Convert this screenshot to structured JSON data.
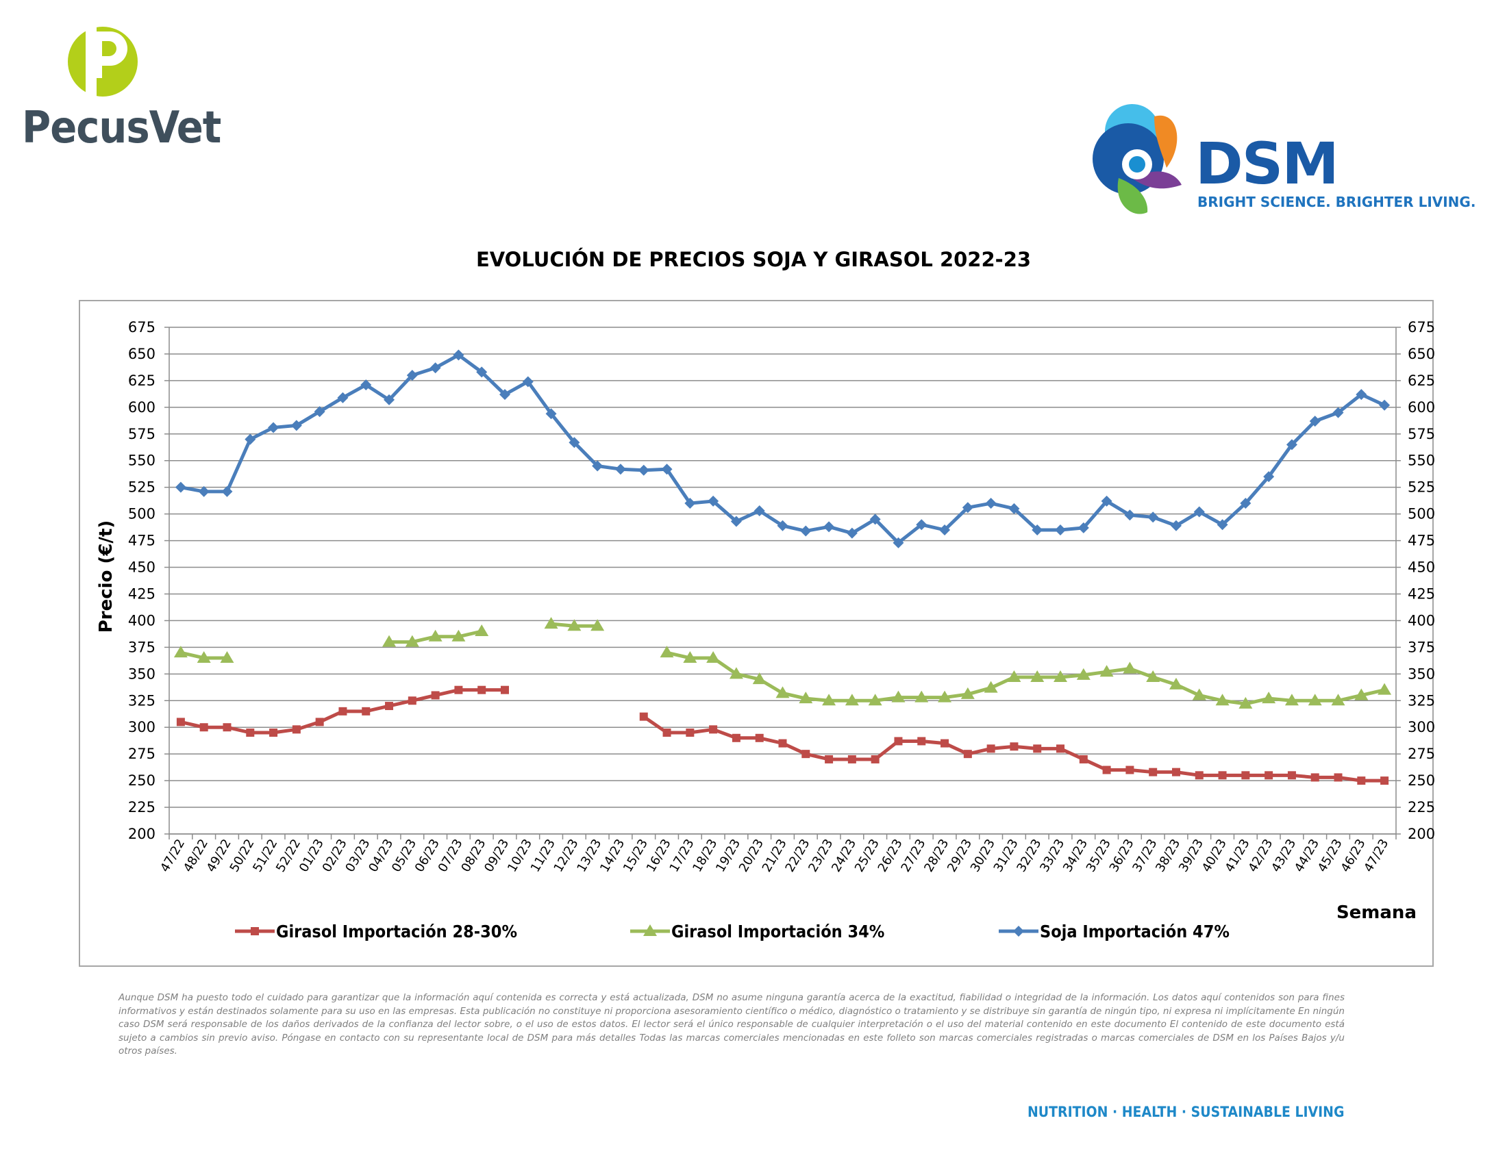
{
  "logos": {
    "pecusvet": {
      "text": "PecusVet",
      "colors": {
        "lime": "#b3cf1a",
        "text": "#3f4f5c"
      }
    },
    "dsm": {
      "text": "DSM",
      "tagline": "BRIGHT SCIENCE. BRIGHTER LIVING.",
      "colors": {
        "text": "#1a5aa6"
      }
    }
  },
  "footer": {
    "disclaimer": "Aunque DSM ha puesto todo el cuidado para garantizar que la información aquí contenida es correcta y está actualizada, DSM no asume ninguna garantía acerca de la exactitud, fiabilidad o integridad de la información. Los datos aquí contenidos son para fines informativos y están destinados solamente para su uso en las empresas. Esta publicación no constituye ni proporciona asesoramiento científico o médico, diagnóstico o tratamiento y se distribuye sin garantía de ningún tipo, ni expresa ni implícitamente En ningún caso DSM será responsable de los daños derivados de la confianza del lector sobre, o el uso de estos datos. El lector será el único responsable de cualquier interpretación o el uso del material contenido en este documento El contenido de este documento está sujeto a cambios sin previo aviso. Póngase en contacto con su representante local de DSM para más detalles Todas las marcas comerciales mencionadas en este folleto son marcas comerciales registradas o marcas comerciales de DSM en los Países Bajos y/u otros países.",
    "tagline": "NUTRITION · HEALTH · SUSTAINABLE LIVING"
  },
  "chart_data": {
    "type": "line",
    "title": "EVOLUCIÓN DE PRECIOS SOJA Y GIRASOL 2022-23",
    "xlabel": "Semana",
    "ylabel": "Precio (€/t)",
    "ylim": [
      200,
      675
    ],
    "ytick_step": 25,
    "grid": true,
    "legend_position": "bottom",
    "categories": [
      "47/22",
      "48/22",
      "49/22",
      "50/22",
      "51/22",
      "52/22",
      "01/23",
      "02/23",
      "03/23",
      "04/23",
      "05/23",
      "06/23",
      "07/23",
      "08/23",
      "09/23",
      "10/23",
      "11/23",
      "12/23",
      "13/23",
      "14/23",
      "15/23",
      "16/23",
      "17/23",
      "18/23",
      "19/23",
      "20/23",
      "21/23",
      "22/23",
      "23/23",
      "24/23",
      "25/23",
      "26/23",
      "27/23",
      "28/23",
      "29/23",
      "30/23",
      "31/23",
      "32/23",
      "33/23",
      "34/23",
      "35/23",
      "36/23",
      "37/23",
      "38/23",
      "39/23",
      "40/23",
      "41/23",
      "42/23",
      "43/23",
      "44/23",
      "45/23",
      "46/23",
      "47/23"
    ],
    "series": [
      {
        "name": "Girasol Importación 28-30%",
        "color": "#be4b48",
        "marker": "square",
        "values": [
          305,
          300,
          300,
          295,
          295,
          298,
          305,
          315,
          315,
          320,
          325,
          330,
          335,
          335,
          335,
          null,
          null,
          null,
          null,
          null,
          310,
          295,
          295,
          298,
          290,
          290,
          285,
          275,
          270,
          270,
          270,
          287,
          287,
          285,
          275,
          280,
          282,
          280,
          280,
          270,
          260,
          260,
          258,
          258,
          255,
          255,
          255,
          255,
          255,
          253,
          253,
          250,
          250
        ]
      },
      {
        "name": "Girasol Importación 34%",
        "color": "#9bbb59",
        "marker": "triangle",
        "values": [
          370,
          365,
          365,
          null,
          null,
          null,
          null,
          null,
          null,
          380,
          380,
          385,
          385,
          390,
          null,
          null,
          397,
          395,
          395,
          null,
          null,
          370,
          365,
          365,
          350,
          345,
          332,
          327,
          325,
          325,
          325,
          328,
          328,
          328,
          331,
          337,
          347,
          347,
          347,
          349,
          352,
          355,
          347,
          340,
          330,
          325,
          322,
          327,
          325,
          325,
          325,
          330,
          335
        ]
      },
      {
        "name": "Soja Importación 47%",
        "color": "#4a7ebb",
        "marker": "diamond",
        "values": [
          525,
          521,
          521,
          570,
          581,
          583,
          596,
          609,
          621,
          607,
          630,
          637,
          649,
          633,
          612,
          624,
          594,
          567,
          545,
          542,
          541,
          542,
          510,
          512,
          493,
          503,
          489,
          484,
          488,
          482,
          495,
          473,
          490,
          485,
          506,
          510,
          505,
          485,
          485,
          487,
          512,
          499,
          497,
          489,
          502,
          490,
          510,
          535,
          565,
          587,
          595,
          612,
          602
        ]
      }
    ]
  }
}
